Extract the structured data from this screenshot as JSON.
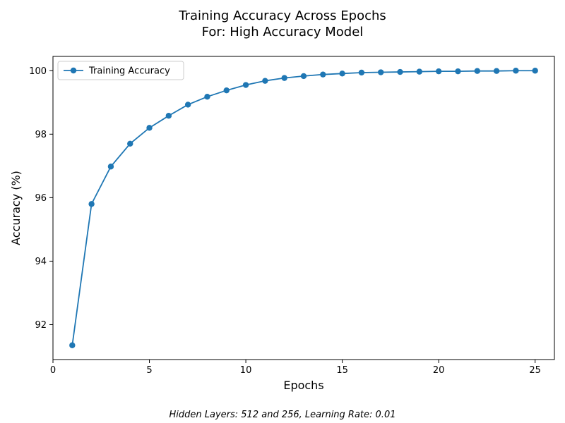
{
  "chart_data": {
    "type": "line",
    "title": [
      "Training Accuracy Across Epochs",
      "For: High Accuracy Model"
    ],
    "xlabel": "Epochs",
    "ylabel": "Accuracy (%)",
    "xlim": [
      0,
      26
    ],
    "ylim": [
      90.9,
      100.45
    ],
    "xticks": [
      0,
      5,
      10,
      15,
      20,
      25
    ],
    "yticks": [
      92,
      94,
      96,
      98,
      100
    ],
    "grid": false,
    "legend_position": "top-left",
    "series": [
      {
        "name": "Training Accuracy",
        "color": "#1f77b4",
        "marker": "circle",
        "x": [
          1,
          2,
          3,
          4,
          5,
          6,
          7,
          8,
          9,
          10,
          11,
          12,
          13,
          14,
          15,
          16,
          17,
          18,
          19,
          20,
          21,
          22,
          23,
          24,
          25
        ],
        "y": [
          91.35,
          95.8,
          96.98,
          97.7,
          98.2,
          98.58,
          98.93,
          99.18,
          99.38,
          99.55,
          99.68,
          99.77,
          99.83,
          99.88,
          99.91,
          99.94,
          99.95,
          99.96,
          99.97,
          99.98,
          99.98,
          99.99,
          99.99,
          100.0,
          100.0
        ]
      }
    ],
    "footnote": "Hidden Layers: 512 and 256, Learning Rate: 0.01"
  }
}
